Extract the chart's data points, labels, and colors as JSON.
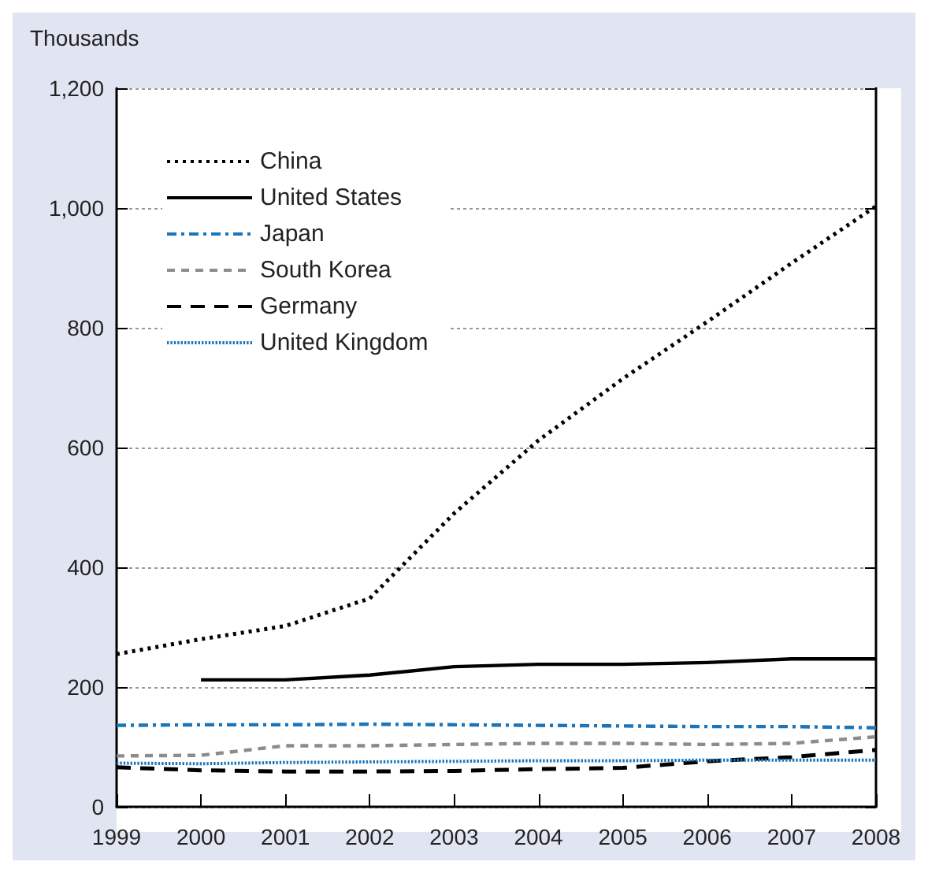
{
  "chart_data": {
    "type": "line",
    "ylabel": "Thousands",
    "categories": [
      "1999",
      "2000",
      "2001",
      "2002",
      "2003",
      "2004",
      "2005",
      "2006",
      "2007",
      "2008"
    ],
    "series": [
      {
        "name": "China",
        "color": "#000000",
        "line_style": "dotted",
        "values": [
          255,
          280,
          302,
          348,
          490,
          612,
          715,
          810,
          908,
          1003
        ]
      },
      {
        "name": "United States",
        "color": "#000000",
        "line_style": "solid",
        "values": [
          null,
          212,
          212,
          220,
          234,
          238,
          238,
          241,
          247,
          247
        ]
      },
      {
        "name": "Japan",
        "color": "#1a75bb",
        "line_style": "dashdot",
        "values": [
          136,
          137,
          137,
          138,
          137,
          136,
          135,
          134,
          134,
          132
        ]
      },
      {
        "name": "South Korea",
        "color": "#8c8c8c",
        "line_style": "dashed",
        "values": [
          85,
          86,
          102,
          102,
          104,
          106,
          106,
          104,
          106,
          117
        ]
      },
      {
        "name": "Germany",
        "color": "#000000",
        "line_style": "longdash",
        "values": [
          66,
          61,
          59,
          59,
          60,
          63,
          65,
          76,
          83,
          95
        ]
      },
      {
        "name": "United Kingdom",
        "color": "#1a75bb",
        "line_style": "finedotted",
        "values": [
          73,
          72,
          74,
          75,
          76,
          77,
          77,
          78,
          78,
          78
        ]
      }
    ],
    "ylim": [
      0,
      1200
    ],
    "yticks": [
      0,
      200,
      400,
      600,
      800,
      {
        "value": 1000,
        "label": "1,000"
      },
      {
        "value": 1200,
        "label": "1,200"
      }
    ],
    "grid": "y",
    "legend": "top left",
    "marker": "none"
  }
}
